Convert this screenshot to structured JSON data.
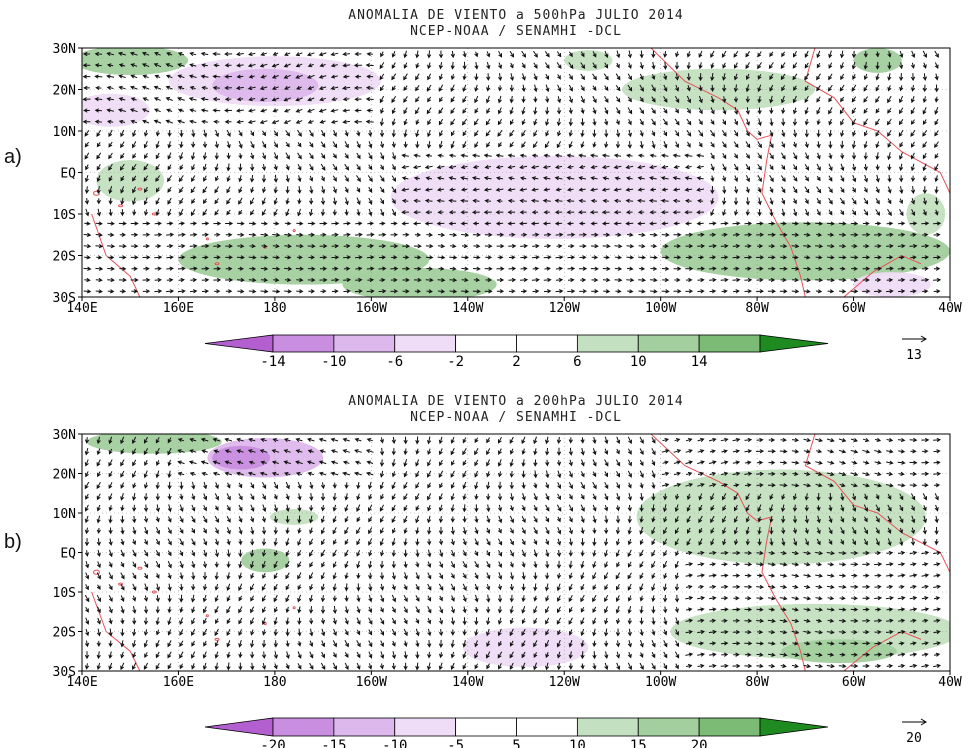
{
  "panels": [
    {
      "label": "a)",
      "title_line1": "ANOMALIA DE VIENTO a 500hPa JULIO 2014",
      "title_line2": "NCEP-NOAA / SENAMHI -DCL",
      "lat_labels": [
        "30N",
        "20N",
        "10N",
        "EQ",
        "10S",
        "20S",
        "30S"
      ],
      "lon_labels": [
        "140E",
        "160E",
        "180",
        "160W",
        "140W",
        "120W",
        "100W",
        "80W",
        "60W",
        "40W"
      ],
      "colorbar_labels": [
        "-14",
        "-10",
        "-6",
        "-2",
        "2",
        "6",
        "10",
        "14"
      ],
      "reference_vector": "13"
    },
    {
      "label": "b)",
      "title_line1": "ANOMALIA DE VIENTO a 200hPa JULIO 2014",
      "title_line2": "NCEP-NOAA / SENAMHI -DCL",
      "lat_labels": [
        "30N",
        "20N",
        "10N",
        "EQ",
        "10S",
        "20S",
        "30S"
      ],
      "lon_labels": [
        "140E",
        "160E",
        "180",
        "160W",
        "140W",
        "120W",
        "100W",
        "80W",
        "60W",
        "40W"
      ],
      "colorbar_labels": [
        "-20",
        "-15",
        "-10",
        "-5",
        "5",
        "10",
        "15",
        "20"
      ],
      "reference_vector": "20"
    }
  ],
  "colors": {
    "purple_strong": "#b35fcf",
    "purple_mid": "#c98ee0",
    "purple_light": "#ddb8ec",
    "purple_pale": "#efdcf6",
    "white": "#ffffff",
    "green_pale": "#c3e0c0",
    "green_light": "#a3cf9e",
    "green_mid": "#7cbb75",
    "green_strong": "#1f8a1f",
    "coast": "#e8505a",
    "grid": "#999999"
  }
}
